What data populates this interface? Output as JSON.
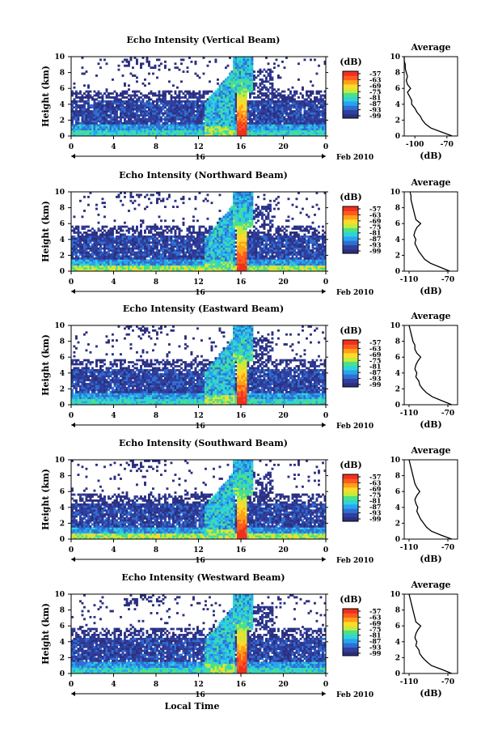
{
  "chart_data": [
    {
      "type": "heatmap",
      "title": "Echo Intensity (Vertical Beam)",
      "ylabel": "Height (km)",
      "yticks": [
        "0",
        "2",
        "4",
        "6",
        "8",
        "10"
      ],
      "xticks": [
        "0",
        "4",
        "8",
        "12",
        "16",
        "20",
        "0"
      ],
      "xlim": [
        0,
        24
      ],
      "ylim": [
        0,
        10
      ],
      "date_label": "16",
      "date_suffix": "Feb 2010",
      "colorbar": {
        "unit": "(dB)",
        "ticks": [
          "-57",
          "-63",
          "-69",
          "-75",
          "-81",
          "-87",
          "-93",
          "-99"
        ]
      },
      "average_profile": {
        "title": "Average",
        "xlabel": "(dB)",
        "xticks": [
          "-100",
          "-70"
        ],
        "xlim": [
          -110,
          -60
        ],
        "heights": [
          0,
          0.5,
          1,
          1.5,
          2,
          2.5,
          3,
          3.5,
          4,
          4.5,
          5,
          5.5,
          6,
          6.5,
          7,
          7.5,
          8,
          8.5,
          9,
          9.5,
          10
        ],
        "values": [
          -65,
          -75,
          -85,
          -90,
          -93,
          -95,
          -98,
          -100,
          -103,
          -103,
          -105,
          -107,
          -104,
          -107,
          -108,
          -107,
          -108,
          -109,
          -109,
          -110,
          -110
        ]
      }
    },
    {
      "type": "heatmap",
      "title": "Echo Intensity (Northward Beam)",
      "ylabel": "Height (km)",
      "yticks": [
        "0",
        "2",
        "4",
        "6",
        "8",
        "10"
      ],
      "xticks": [
        "0",
        "4",
        "8",
        "12",
        "16",
        "20",
        "0"
      ],
      "xlim": [
        0,
        24
      ],
      "ylim": [
        0,
        10
      ],
      "date_label": "16",
      "date_suffix": "Feb 2010",
      "colorbar": {
        "unit": "(dB)",
        "ticks": [
          "-57",
          "-63",
          "-69",
          "-75",
          "-81",
          "-87",
          "-93",
          "-99"
        ]
      },
      "average_profile": {
        "title": "Average",
        "xlabel": "(dB)",
        "xticks": [
          "-110",
          "-70"
        ],
        "xlim": [
          -115,
          -60
        ],
        "heights": [
          0,
          0.5,
          1,
          1.5,
          2,
          2.5,
          3,
          3.5,
          4,
          4.5,
          5,
          5.5,
          6,
          6.5,
          7,
          7.5,
          8,
          8.5,
          9,
          9.5,
          10
        ],
        "values": [
          -68,
          -78,
          -88,
          -94,
          -97,
          -100,
          -102,
          -104,
          -103,
          -105,
          -104,
          -102,
          -98,
          -103,
          -104,
          -105,
          -106,
          -107,
          -108,
          -108,
          -109
        ]
      }
    },
    {
      "type": "heatmap",
      "title": "Echo Intensity (Eastward Beam)",
      "ylabel": "Height (km)",
      "yticks": [
        "0",
        "2",
        "4",
        "6",
        "8",
        "10"
      ],
      "xticks": [
        "0",
        "4",
        "8",
        "12",
        "16",
        "20",
        "0"
      ],
      "xlim": [
        0,
        24
      ],
      "ylim": [
        0,
        10
      ],
      "date_label": "16",
      "date_suffix": "Feb 2010",
      "colorbar": {
        "unit": "(dB)",
        "ticks": [
          "-57",
          "-63",
          "-69",
          "-75",
          "-81",
          "-87",
          "-93",
          "-99"
        ]
      },
      "average_profile": {
        "title": "Average",
        "xlabel": "(dB)",
        "xticks": [
          "-110",
          "-70"
        ],
        "xlim": [
          -115,
          -60
        ],
        "heights": [
          0,
          0.5,
          1,
          1.5,
          2,
          2.5,
          3,
          3.5,
          4,
          4.5,
          5,
          5.5,
          6,
          6.5,
          7,
          7.5,
          8,
          8.5,
          9,
          9.5,
          10
        ],
        "values": [
          -66,
          -76,
          -86,
          -92,
          -96,
          -99,
          -100,
          -103,
          -102,
          -104,
          -103,
          -101,
          -98,
          -102,
          -104,
          -104,
          -106,
          -107,
          -108,
          -109,
          -110
        ]
      }
    },
    {
      "type": "heatmap",
      "title": "Echo Intensity (Southward Beam)",
      "ylabel": "Height (km)",
      "yticks": [
        "0",
        "2",
        "4",
        "6",
        "8",
        "10"
      ],
      "xticks": [
        "0",
        "4",
        "8",
        "12",
        "16",
        "20",
        "0"
      ],
      "xlim": [
        0,
        24
      ],
      "ylim": [
        0,
        10
      ],
      "date_label": "16",
      "date_suffix": "Feb 2010",
      "colorbar": {
        "unit": "(dB)",
        "ticks": [
          "-57",
          "-63",
          "-69",
          "-75",
          "-81",
          "-87",
          "-93",
          "-99"
        ]
      },
      "average_profile": {
        "title": "Average",
        "xlabel": "(dB)",
        "xticks": [
          "-110",
          "-70"
        ],
        "xlim": [
          -115,
          -60
        ],
        "heights": [
          0,
          0.5,
          1,
          1.5,
          2,
          2.5,
          3,
          3.5,
          4,
          4.5,
          5,
          5.5,
          6,
          6.5,
          7,
          7.5,
          8,
          8.5,
          9,
          9.5,
          10
        ],
        "values": [
          -66,
          -77,
          -87,
          -92,
          -95,
          -98,
          -100,
          -102,
          -101,
          -103,
          -104,
          -102,
          -99,
          -102,
          -104,
          -105,
          -106,
          -107,
          -108,
          -109,
          -110
        ]
      }
    },
    {
      "type": "heatmap",
      "title": "Echo Intensity (Westward Beam)",
      "ylabel": "Height (km)",
      "xlabel": "Local Time",
      "yticks": [
        "0",
        "2",
        "4",
        "6",
        "8",
        "10"
      ],
      "xticks": [
        "0",
        "4",
        "8",
        "12",
        "16",
        "20",
        "0"
      ],
      "xlim": [
        0,
        24
      ],
      "ylim": [
        0,
        10
      ],
      "date_label": "16",
      "date_suffix": "Feb 2010",
      "colorbar": {
        "unit": "(dB)",
        "ticks": [
          "-57",
          "-63",
          "-69",
          "-75",
          "-81",
          "-87",
          "-93",
          "-99"
        ]
      },
      "average_profile": {
        "title": "Average",
        "xlabel": "(dB)",
        "xticks": [
          "-110",
          "-70"
        ],
        "xlim": [
          -115,
          -60
        ],
        "heights": [
          0,
          0.5,
          1,
          1.5,
          2,
          2.5,
          3,
          3.5,
          4,
          4.5,
          5,
          5.5,
          6,
          6.5,
          7,
          7.5,
          8,
          8.5,
          9,
          9.5,
          10
        ],
        "values": [
          -66,
          -76,
          -87,
          -92,
          -96,
          -99,
          -100,
          -103,
          -102,
          -104,
          -103,
          -101,
          -98,
          -103,
          -104,
          -105,
          -106,
          -107,
          -108,
          -109,
          -110
        ]
      }
    }
  ],
  "colors": {
    "colormap": [
      "#2b2f7e",
      "#303f9f",
      "#2f6fd1",
      "#29a3ef",
      "#2fd3d8",
      "#4be08a",
      "#c7ea3a",
      "#ffd92b",
      "#ffa018",
      "#ff5a1f",
      "#f0301f"
    ],
    "no_data": "#ffffff",
    "axis": "#000000"
  }
}
